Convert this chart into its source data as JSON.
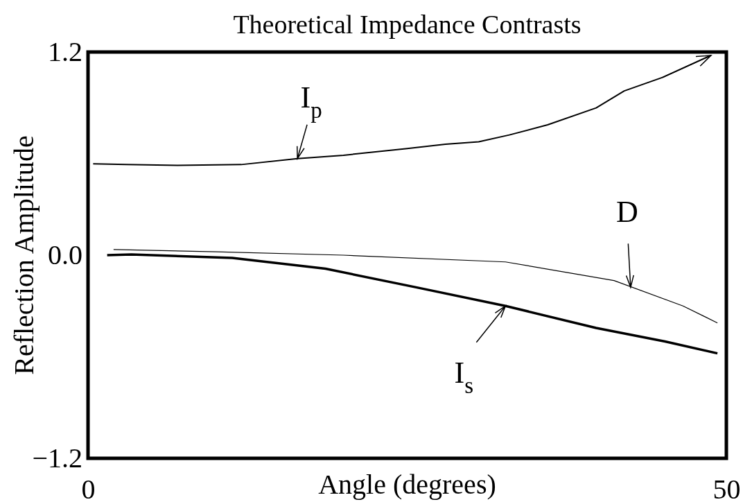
{
  "chart_data": {
    "type": "line",
    "title": "Theoretical Impedance Contrasts",
    "xlabel": "Angle (degrees)",
    "ylabel": "Reflection Amplitude",
    "xlim": [
      0,
      50
    ],
    "ylim": [
      -1.2,
      1.2
    ],
    "xticks": [
      0,
      50
    ],
    "yticks": [
      {
        "value": -1.2,
        "label": "−1.2"
      },
      {
        "value": 0,
        "label": "0.0"
      },
      1.2
    ],
    "grid": false,
    "marker": "none",
    "line_style": "solid",
    "series": [
      {
        "color": "#000000",
        "x": [
          0.4,
          3,
          7,
          12,
          16.4,
          20,
          25,
          28,
          30.6,
          33,
          36,
          39.8,
          42,
          45,
          48.8
        ],
        "values": [
          0.54,
          0.535,
          0.53,
          0.535,
          0.57,
          0.59,
          0.63,
          0.655,
          0.67,
          0.71,
          0.77,
          0.87,
          0.97,
          1.05,
          1.18
        ]
      },
      {
        "color": "#000000",
        "x": [
          2,
          10,
          20,
          32.7,
          41.2,
          46.6,
          49.3
        ],
        "values": [
          0.033,
          0.02,
          0,
          -0.04,
          -0.15,
          -0.3,
          -0.4
        ]
      },
      {
        "color": "#000000",
        "x": [
          1.5,
          3.4,
          11.3,
          18.6,
          25.7,
          32.7,
          39.8,
          45.2,
          49.3
        ],
        "values": [
          0,
          0.004,
          -0.016,
          -0.08,
          -0.19,
          -0.3,
          -0.43,
          -0.51,
          -0.58
        ]
      }
    ],
    "annotations": [
      {
        "text": "I$_{p}$",
        "x": 16.4,
        "y": 0.57
      },
      {
        "text": "D",
        "x": 42.5,
        "y": -0.19
      },
      {
        "text": "I$_{s}$",
        "x": 32.7,
        "y": -0.3
      }
    ]
  }
}
